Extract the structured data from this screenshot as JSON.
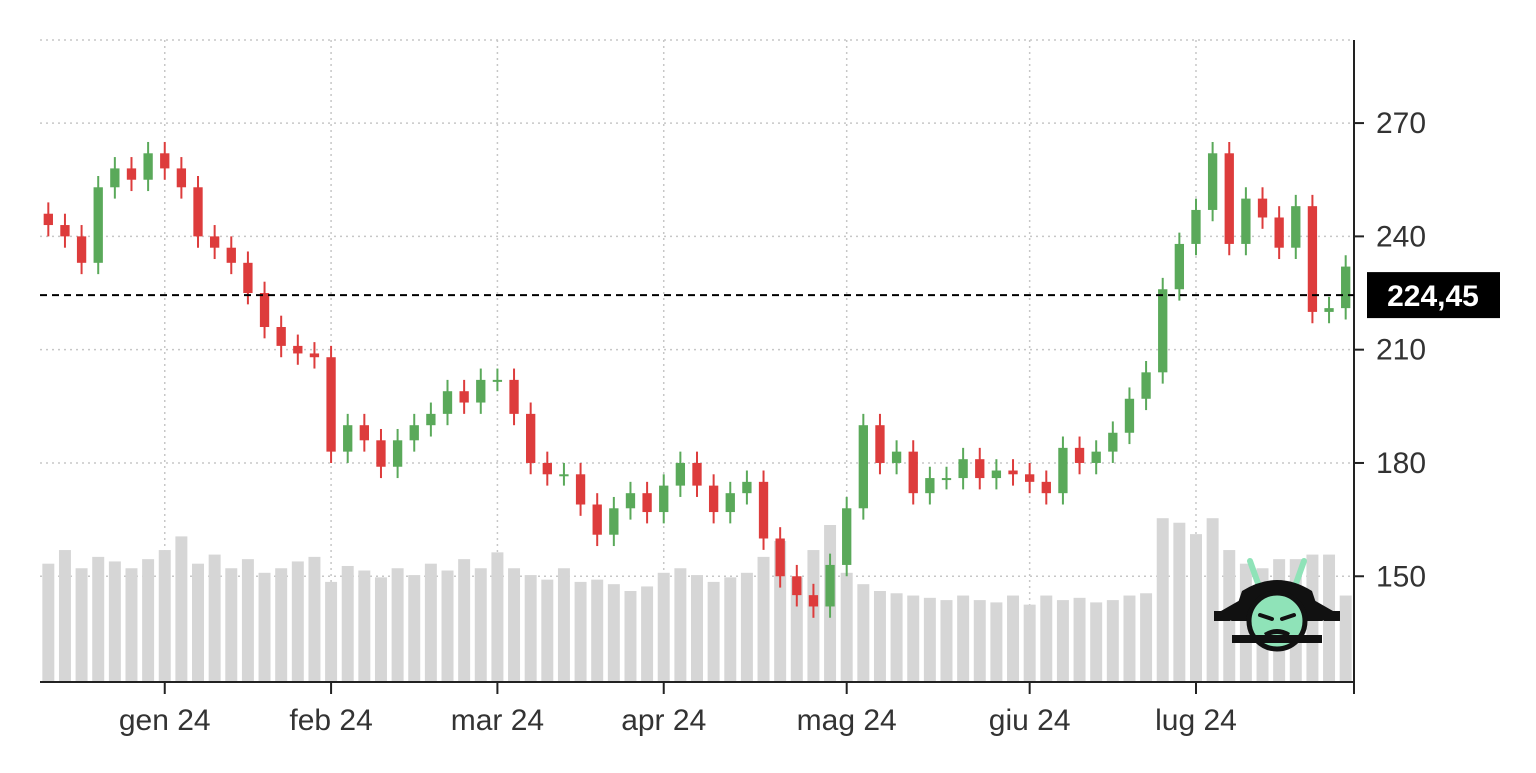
{
  "chart_data": {
    "type": "ohlc",
    "title": "",
    "xlabel": "",
    "ylabel": "",
    "ylim": [
      122,
      292
    ],
    "y_ticks": [
      150,
      180,
      210,
      240,
      270
    ],
    "x_tick_labels": [
      "gen 24",
      "feb 24",
      "mar 24",
      "apr 24",
      "mag 24",
      "giu 24",
      "lug 24"
    ],
    "x_tick_bar_index": [
      7,
      17,
      27,
      37,
      48,
      59,
      69
    ],
    "grid": true,
    "current_price": 224.45,
    "current_price_label": "224,45",
    "colors": {
      "up": "#5aa95a",
      "down": "#dd3c3c",
      "volume": "#d6d6d6",
      "grid": "#c7c7c7",
      "axis": "#222222",
      "tag_bg": "#000000"
    },
    "logo_icon": "samurai-helmet-icon",
    "closes": [
      243,
      240,
      233,
      253,
      258,
      255,
      262,
      258,
      253,
      240,
      237,
      233,
      225,
      216,
      211,
      209,
      208,
      183,
      190,
      186,
      179,
      186,
      190,
      193,
      199,
      196,
      202,
      202,
      193,
      180,
      177,
      177,
      169,
      161,
      168,
      172,
      167,
      174,
      180,
      174,
      167,
      172,
      175,
      160,
      150,
      145,
      142,
      153,
      168,
      190,
      180,
      183,
      172,
      176,
      176,
      181,
      176,
      178,
      177,
      175,
      172,
      184,
      180,
      183,
      188,
      197,
      204,
      226,
      238,
      247,
      262,
      238,
      250,
      245,
      237,
      248,
      220,
      221,
      232
    ],
    "volumes": [
      52,
      58,
      50,
      55,
      53,
      50,
      54,
      58,
      64,
      52,
      56,
      50,
      54,
      48,
      50,
      53,
      55,
      44,
      51,
      49,
      46,
      50,
      47,
      52,
      49,
      54,
      50,
      57,
      50,
      47,
      45,
      50,
      44,
      45,
      43,
      40,
      42,
      48,
      50,
      47,
      44,
      46,
      48,
      55,
      62,
      46,
      58,
      69,
      48,
      43,
      40,
      39,
      38,
      37,
      36,
      38,
      36,
      35,
      38,
      34,
      38,
      36,
      37,
      35,
      36,
      38,
      39,
      72,
      70,
      65,
      72,
      58,
      52,
      50,
      54,
      54,
      56,
      56,
      38
    ]
  },
  "price_tag": {
    "label": "224,45"
  }
}
